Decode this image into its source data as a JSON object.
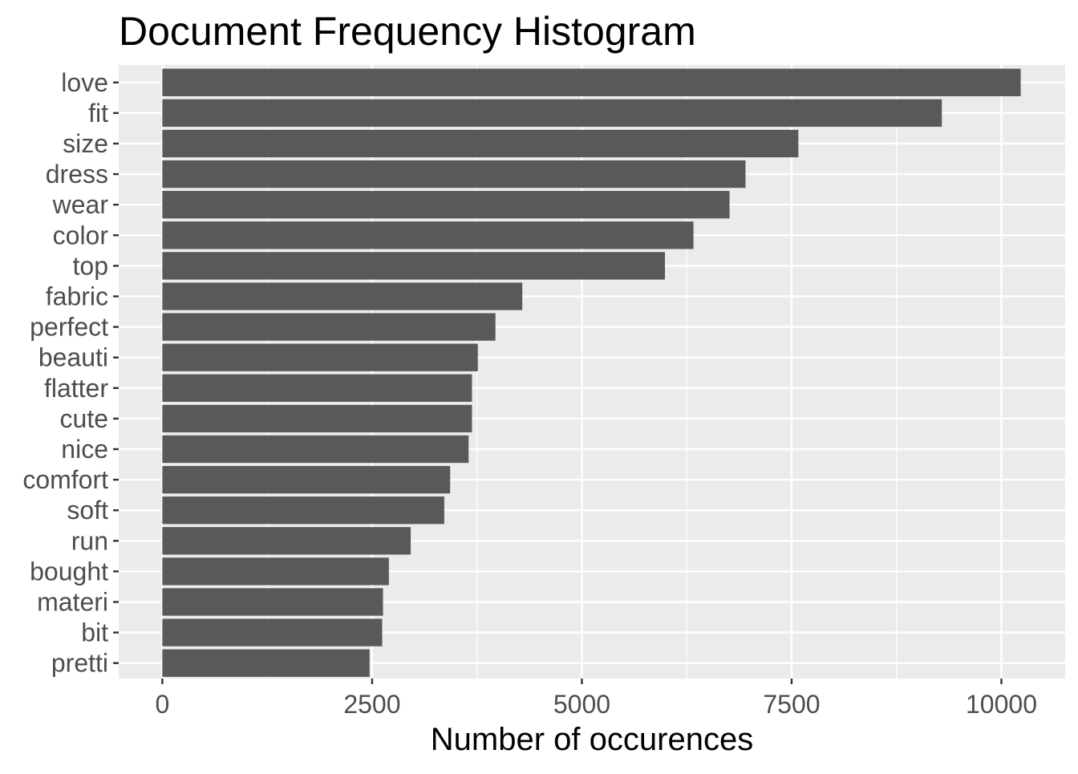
{
  "chart_data": {
    "type": "bar",
    "orientation": "horizontal",
    "title": "Document Frequency Histogram",
    "xlabel": "Number of occurences",
    "ylabel": "",
    "categories": [
      "love",
      "fit",
      "size",
      "dress",
      "wear",
      "color",
      "top",
      "fabric",
      "perfect",
      "beauti",
      "flatter",
      "cute",
      "nice",
      "comfort",
      "soft",
      "run",
      "bought",
      "materi",
      "bit",
      "pretti"
    ],
    "values": [
      10230,
      9290,
      7580,
      6950,
      6760,
      6330,
      5990,
      4290,
      3970,
      3760,
      3690,
      3690,
      3650,
      3430,
      3360,
      2960,
      2700,
      2630,
      2620,
      2470
    ],
    "xlim": [
      -520,
      10760
    ],
    "x_ticks": [
      0,
      2500,
      5000,
      7500,
      10000
    ],
    "x_tick_labels": [
      "0",
      "2500",
      "5000",
      "7500",
      "10000"
    ],
    "grid": true,
    "legend": "none",
    "colors": {
      "bar": "#595959",
      "panel_background": "#ebebeb",
      "grid": "#ffffff",
      "tick_text": "#4d4d4d",
      "tick_mark": "#333333"
    }
  }
}
